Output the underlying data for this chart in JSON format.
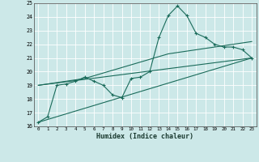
{
  "xlabel": "Humidex (Indice chaleur)",
  "bg_color": "#cce8e8",
  "grid_color": "#ffffff",
  "line_color": "#1a6b5a",
  "xlim": [
    -0.5,
    23.5
  ],
  "ylim": [
    16,
    25
  ],
  "xticks": [
    0,
    1,
    2,
    3,
    4,
    5,
    6,
    7,
    8,
    9,
    10,
    11,
    12,
    13,
    14,
    15,
    16,
    17,
    18,
    19,
    20,
    21,
    22,
    23
  ],
  "yticks": [
    16,
    17,
    18,
    19,
    20,
    21,
    22,
    23,
    24,
    25
  ],
  "curve_x": [
    0,
    1,
    2,
    3,
    4,
    5,
    6,
    7,
    8,
    9,
    10,
    11,
    12,
    13,
    14,
    15,
    16,
    17,
    18,
    19,
    20,
    21,
    22,
    23
  ],
  "curve_y": [
    16.3,
    16.7,
    19.0,
    19.1,
    19.3,
    19.6,
    19.3,
    19.0,
    18.3,
    18.1,
    19.5,
    19.6,
    20.0,
    22.5,
    24.1,
    24.8,
    24.1,
    22.8,
    22.5,
    22.0,
    21.8,
    21.8,
    21.6,
    21.0
  ],
  "trend1_x": [
    0,
    23
  ],
  "trend1_y": [
    16.3,
    21.0
  ],
  "trend2_x": [
    0,
    23
  ],
  "trend2_y": [
    19.0,
    21.0
  ],
  "trend3_x": [
    0,
    5,
    14,
    23
  ],
  "trend3_y": [
    19.0,
    19.5,
    21.3,
    22.2
  ]
}
